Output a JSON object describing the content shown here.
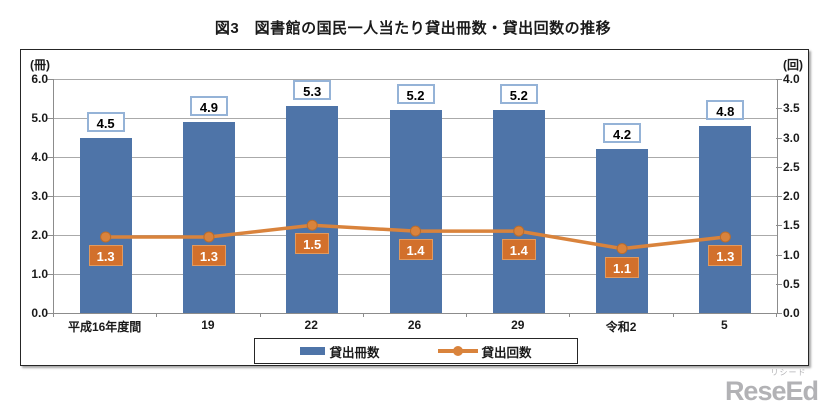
{
  "title": "図3　図書館の国民一人当たり貸出冊数・貸出回数の推移",
  "chart_data": {
    "type": "bar",
    "subtype": "bar-line-combo",
    "categories": [
      "平成16年度間",
      "19",
      "22",
      "26",
      "29",
      "令和2",
      "5"
    ],
    "series": [
      {
        "name": "貸出冊数",
        "kind": "bar",
        "axis": "left",
        "color": "#4e74a8",
        "values": [
          4.5,
          4.9,
          5.3,
          5.2,
          5.2,
          4.2,
          4.8
        ]
      },
      {
        "name": "貸出回数",
        "kind": "line",
        "axis": "right",
        "color": "#d9833c",
        "values": [
          1.3,
          1.3,
          1.5,
          1.4,
          1.4,
          1.1,
          1.3
        ]
      }
    ],
    "left_axis": {
      "unit": "(冊)",
      "min": 0,
      "max": 6,
      "step": 1,
      "ticks": [
        "0.0",
        "1.0",
        "2.0",
        "3.0",
        "4.0",
        "5.0",
        "6.0"
      ]
    },
    "right_axis": {
      "unit": "(回)",
      "min": 0,
      "max": 4,
      "step": 0.5,
      "ticks": [
        "0.0",
        "0.5",
        "1.0",
        "1.5",
        "2.0",
        "2.5",
        "3.0",
        "3.5",
        "4.0"
      ]
    },
    "grid": true,
    "legend_position": "bottom"
  },
  "legend": {
    "items": [
      {
        "label": "貸出冊数",
        "color": "#4e74a8",
        "marker": "bar"
      },
      {
        "label": "貸出回数",
        "color": "#d9833c",
        "marker": "line-dot"
      }
    ]
  },
  "watermark": {
    "ruby": "リシード",
    "text_rese": "Rese",
    "text_ed": "Ed"
  },
  "colors": {
    "bar": "#4e74a8",
    "line": "#d9833c",
    "marker_stroke": "#bc6d2b",
    "line_label_bg": "#d2702c",
    "bar_label_border": "#95b3d7",
    "grid": "#aaaaaa",
    "axis": "#8c8c8c",
    "watermark_gray": "#b2b2b5"
  }
}
